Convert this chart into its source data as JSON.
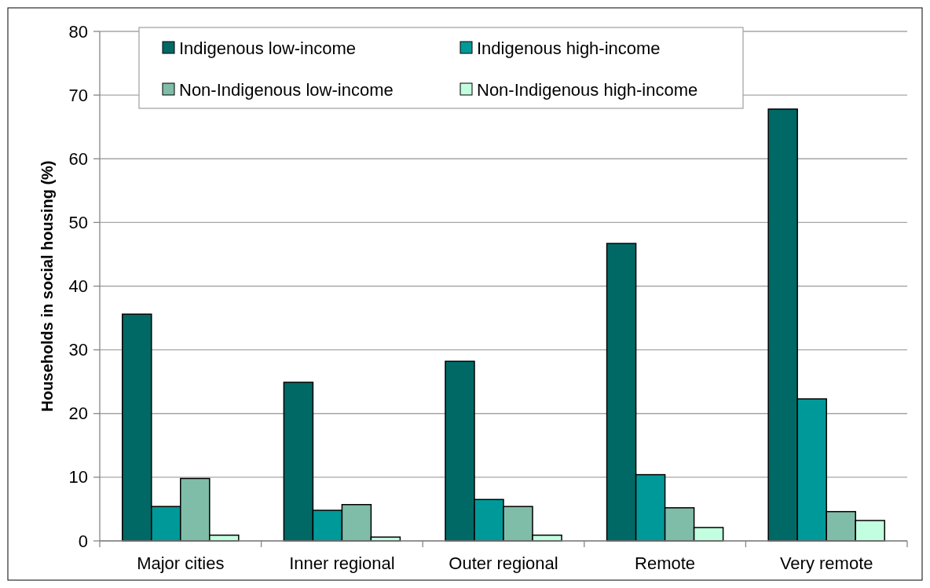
{
  "chart_data": {
    "type": "bar",
    "ylabel": "Households in social housing (%)",
    "categories": [
      "Major cities",
      "Inner regional",
      "Outer regional",
      "Remote",
      "Very remote"
    ],
    "series": [
      {
        "name": "Indigenous low-income",
        "color": "#006966",
        "values": [
          35.6,
          24.9,
          28.2,
          46.7,
          67.8
        ]
      },
      {
        "name": "Indigenous high-income",
        "color": "#009999",
        "values": [
          5.4,
          4.8,
          6.5,
          10.4,
          22.3
        ]
      },
      {
        "name": "Non-Indigenous low-income",
        "color": "#80bda9",
        "values": [
          9.8,
          5.7,
          5.4,
          5.2,
          4.6
        ]
      },
      {
        "name": "Non-Indigenous high-income",
        "color": "#c2ffe0",
        "values": [
          0.9,
          0.6,
          0.9,
          2.1,
          3.2
        ]
      }
    ],
    "ylim": [
      0,
      80
    ],
    "yticks": [
      0,
      10,
      20,
      30,
      40,
      50,
      60,
      70,
      80
    ],
    "grid": "y",
    "legend": "top"
  }
}
